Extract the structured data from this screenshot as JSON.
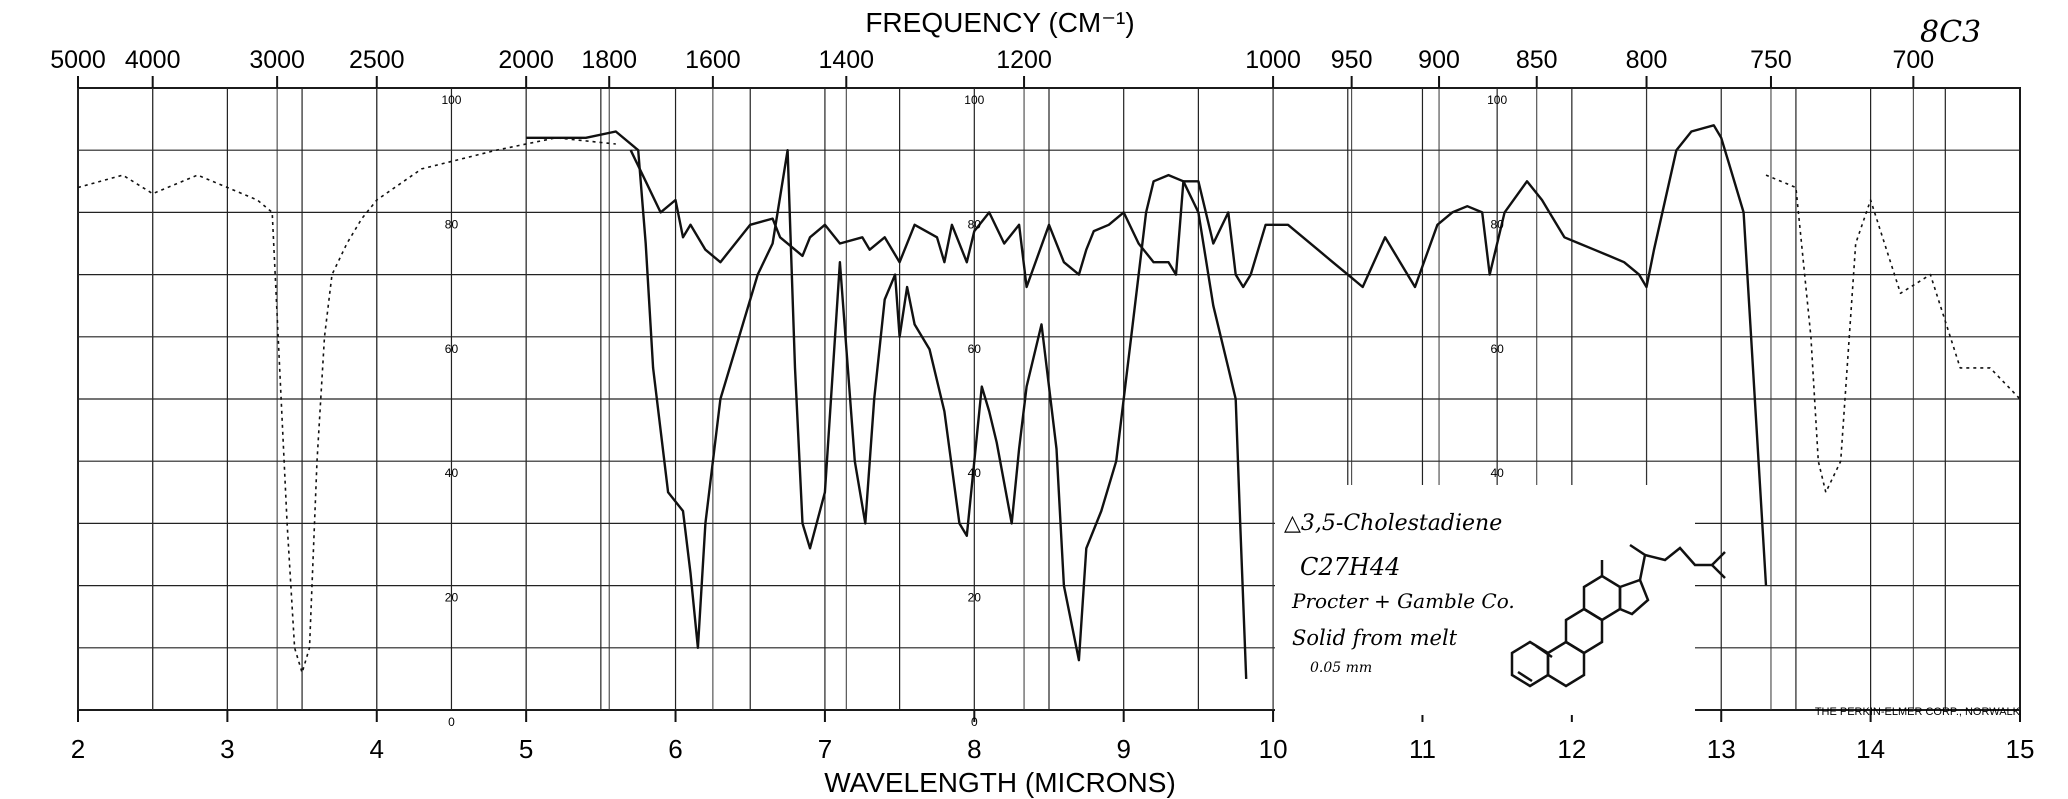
{
  "chart_data": {
    "type": "line",
    "title": "FREQUENCY (CM⁻¹)",
    "xlabel": "WAVELENGTH (MICRONS)",
    "ylabel": "",
    "xlim": [
      2,
      15
    ],
    "ylim": [
      0,
      100
    ],
    "grid": true,
    "x_ticks": [
      "2",
      "3",
      "4",
      "5",
      "6",
      "7",
      "8",
      "9",
      "10",
      "11",
      "12",
      "13",
      "14",
      "15"
    ],
    "frequency_ticks": [
      {
        "label": "5000",
        "micron": 2.0
      },
      {
        "label": "4000",
        "micron": 2.5
      },
      {
        "label": "3000",
        "micron": 3.333
      },
      {
        "label": "2500",
        "micron": 4.0
      },
      {
        "label": "2000",
        "micron": 5.0
      },
      {
        "label": "1800",
        "micron": 5.556
      },
      {
        "label": "1600",
        "micron": 6.25
      },
      {
        "label": "1400",
        "micron": 7.143
      },
      {
        "label": "1200",
        "micron": 8.333
      },
      {
        "label": "1000",
        "micron": 10.0
      },
      {
        "label": "950",
        "micron": 10.526
      },
      {
        "label": "900",
        "micron": 11.111
      },
      {
        "label": "850",
        "micron": 11.765
      },
      {
        "label": "800",
        "micron": 12.5
      },
      {
        "label": "750",
        "micron": 13.333
      },
      {
        "label": "700",
        "micron": 14.286
      }
    ],
    "scale_labels": [
      {
        "text": "100",
        "micron": 4.5,
        "y": 100
      },
      {
        "text": "80",
        "micron": 4.5,
        "y": 80
      },
      {
        "text": "60",
        "micron": 4.5,
        "y": 60
      },
      {
        "text": "40",
        "micron": 4.5,
        "y": 40
      },
      {
        "text": "20",
        "micron": 4.5,
        "y": 20
      },
      {
        "text": "0",
        "micron": 4.5,
        "y": 0
      },
      {
        "text": "100",
        "micron": 8.0,
        "y": 100
      },
      {
        "text": "80",
        "micron": 8.0,
        "y": 80
      },
      {
        "text": "60",
        "micron": 8.0,
        "y": 60
      },
      {
        "text": "40",
        "micron": 8.0,
        "y": 40
      },
      {
        "text": "20",
        "micron": 8.0,
        "y": 20
      },
      {
        "text": "0",
        "micron": 8.0,
        "y": 0
      },
      {
        "text": "100",
        "micron": 11.5,
        "y": 100
      },
      {
        "text": "80",
        "micron": 11.5,
        "y": 80
      },
      {
        "text": "60",
        "micron": 11.5,
        "y": 60
      },
      {
        "text": "40",
        "micron": 11.5,
        "y": 40
      }
    ],
    "series": [
      {
        "style": "solid",
        "x": [
          5.0,
          5.4,
          5.6,
          5.75,
          5.8,
          5.85,
          5.95,
          6.05,
          6.1,
          6.15,
          6.2,
          6.3,
          6.45,
          6.55,
          6.65,
          6.75,
          6.8,
          6.85,
          6.9,
          7.0,
          7.1,
          7.2,
          7.27,
          7.33,
          7.4,
          7.47,
          7.5,
          7.55,
          7.6,
          7.7,
          7.8,
          7.9,
          7.95,
          8.0,
          8.05,
          8.1,
          8.15,
          8.25,
          8.3,
          8.35,
          8.45,
          8.55,
          8.6,
          8.7,
          8.75,
          8.85,
          8.95,
          9.05,
          9.15,
          9.2,
          9.3,
          9.4,
          9.5,
          9.6,
          9.7,
          9.75,
          9.78,
          9.82
        ],
        "y": [
          92,
          92,
          93,
          90,
          75,
          55,
          35,
          32,
          22,
          10,
          30,
          50,
          62,
          70,
          75,
          90,
          55,
          30,
          26,
          35,
          72,
          40,
          30,
          50,
          66,
          70,
          60,
          68,
          62,
          58,
          48,
          30,
          28,
          40,
          52,
          48,
          43,
          30,
          42,
          52,
          62,
          42,
          20,
          8,
          26,
          32,
          40,
          60,
          80,
          85,
          86,
          85,
          80,
          65,
          55,
          50,
          30,
          5
        ]
      },
      {
        "style": "dashed",
        "x": [
          2.0,
          2.3,
          2.5,
          2.6,
          2.8,
          3.0,
          3.2,
          3.3,
          3.4,
          3.45,
          3.5,
          3.55,
          3.6,
          3.65,
          3.7,
          3.8,
          3.9,
          4.0,
          4.3,
          4.8,
          5.2,
          5.6
        ],
        "y": [
          84,
          86,
          83,
          84,
          86,
          84,
          82,
          80,
          30,
          10,
          6,
          10,
          40,
          60,
          70,
          75,
          79,
          82,
          87,
          90,
          92,
          91
        ]
      },
      {
        "style": "solid",
        "x": [
          5.7,
          5.8,
          5.9,
          6.0,
          6.05,
          6.1,
          6.2,
          6.3,
          6.5,
          6.65,
          6.7,
          6.8,
          6.85,
          6.9,
          7.0,
          7.1,
          7.25,
          7.3,
          7.4,
          7.5,
          7.6,
          7.75,
          7.8,
          7.85,
          7.95,
          8.0,
          8.1,
          8.2,
          8.3,
          8.35,
          8.5,
          8.6,
          8.7,
          8.75,
          8.8,
          8.9,
          9.0,
          9.1,
          9.2,
          9.3,
          9.35,
          9.4,
          9.5,
          9.6,
          9.7,
          9.75,
          9.8,
          9.85,
          9.95,
          10.1,
          10.3,
          10.4,
          10.5,
          10.6,
          10.75,
          10.85,
          10.95,
          11.1,
          11.2,
          11.3,
          11.4,
          11.45,
          11.55,
          11.7,
          11.8,
          11.85,
          11.95,
          12.05,
          12.15,
          12.25,
          12.35,
          12.45,
          12.5,
          12.55,
          12.7,
          12.8,
          12.95,
          13.0,
          13.05,
          13.15,
          13.2,
          13.3
        ],
        "y": [
          90,
          85,
          80,
          82,
          76,
          78,
          74,
          72,
          78,
          79,
          76,
          74,
          73,
          76,
          78,
          75,
          76,
          74,
          76,
          72,
          78,
          76,
          72,
          78,
          72,
          77,
          80,
          75,
          78,
          68,
          78,
          72,
          70,
          74,
          77,
          78,
          80,
          75,
          72,
          72,
          70,
          85,
          85,
          75,
          80,
          70,
          68,
          70,
          78,
          78,
          74,
          72,
          70,
          68,
          76,
          72,
          68,
          78,
          80,
          81,
          80,
          70,
          80,
          85,
          82,
          80,
          76,
          75,
          74,
          73,
          72,
          70,
          68,
          74,
          90,
          93,
          94,
          92,
          88,
          80,
          60,
          20
        ]
      },
      {
        "style": "dashed",
        "x": [
          13.3,
          13.5,
          13.6,
          13.65,
          13.7,
          13.8,
          13.9,
          14.0,
          14.2,
          14.4,
          14.6,
          14.8,
          15.0
        ],
        "y": [
          86,
          84,
          60,
          40,
          35,
          40,
          75,
          82,
          67,
          70,
          55,
          55,
          50
        ]
      }
    ],
    "annotation": {
      "title": "△3,5-Cholestadiene",
      "formula": "C27H44",
      "source": "Procter + Gamble Co.",
      "sample": "Solid from melt",
      "thickness": "0.05 mm"
    },
    "margin_note": "8C3",
    "footer": "THE PERKIN-ELMER CORP., NORWALK"
  }
}
